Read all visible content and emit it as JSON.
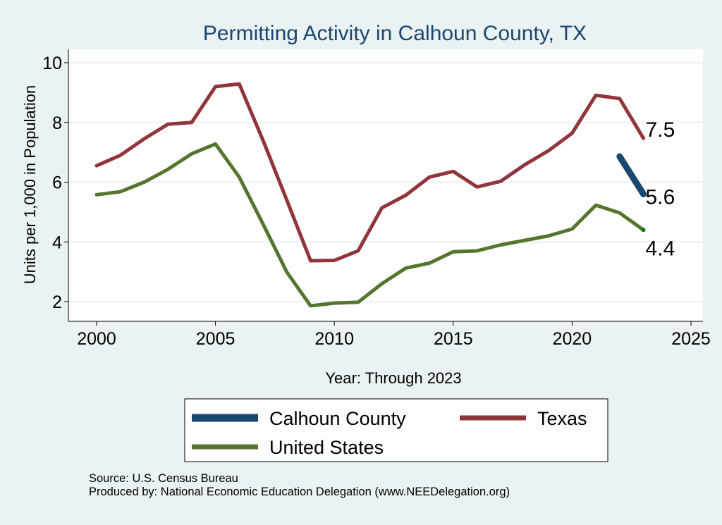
{
  "chart_data": {
    "type": "line",
    "title": "Permitting Activity in Calhoun County, TX",
    "xlabel": "Year: Through 2023",
    "ylabel": "Units per 1,000 in Population",
    "xlim": [
      2000,
      2025
    ],
    "ylim": [
      1.5,
      10.4
    ],
    "xticks": [
      2000,
      2005,
      2010,
      2015,
      2020,
      2025
    ],
    "yticks": [
      2,
      4,
      6,
      8,
      10
    ],
    "grid": true,
    "legend_position": "bottom",
    "series": [
      {
        "name": "Calhoun County",
        "color": "#1a476f",
        "x": [
          2022,
          2023
        ],
        "values": [
          6.86,
          5.6
        ],
        "end_label": "5.6"
      },
      {
        "name": "Texas",
        "color": "#90353b",
        "x": [
          2000,
          2001,
          2002,
          2003,
          2004,
          2005,
          2006,
          2007,
          2008,
          2009,
          2010,
          2011,
          2012,
          2013,
          2014,
          2015,
          2016,
          2017,
          2018,
          2019,
          2020,
          2021,
          2022,
          2023
        ],
        "values": [
          6.55,
          6.9,
          7.45,
          7.94,
          8.0,
          9.2,
          9.29,
          7.4,
          5.4,
          3.37,
          3.38,
          3.7,
          5.14,
          5.56,
          6.17,
          6.36,
          5.84,
          6.03,
          6.58,
          7.05,
          7.64,
          8.91,
          8.8,
          7.47
        ],
        "end_label": "7.5"
      },
      {
        "name": "United States",
        "color": "#55752f",
        "x": [
          2000,
          2001,
          2002,
          2003,
          2004,
          2005,
          2006,
          2007,
          2008,
          2009,
          2010,
          2011,
          2012,
          2013,
          2014,
          2015,
          2016,
          2017,
          2018,
          2019,
          2020,
          2021,
          2022,
          2023
        ],
        "values": [
          5.58,
          5.68,
          6.0,
          6.43,
          6.95,
          7.28,
          6.17,
          4.6,
          2.99,
          1.86,
          1.95,
          1.98,
          2.6,
          3.12,
          3.29,
          3.67,
          3.7,
          3.9,
          4.05,
          4.2,
          4.43,
          5.23,
          4.97,
          4.4
        ],
        "end_label": "4.4"
      }
    ]
  },
  "source": {
    "line1": "Source: U.S. Census Bureau",
    "line2": "Produced by: National Economic Education Delegation (www.NEEDelegation.org)"
  }
}
